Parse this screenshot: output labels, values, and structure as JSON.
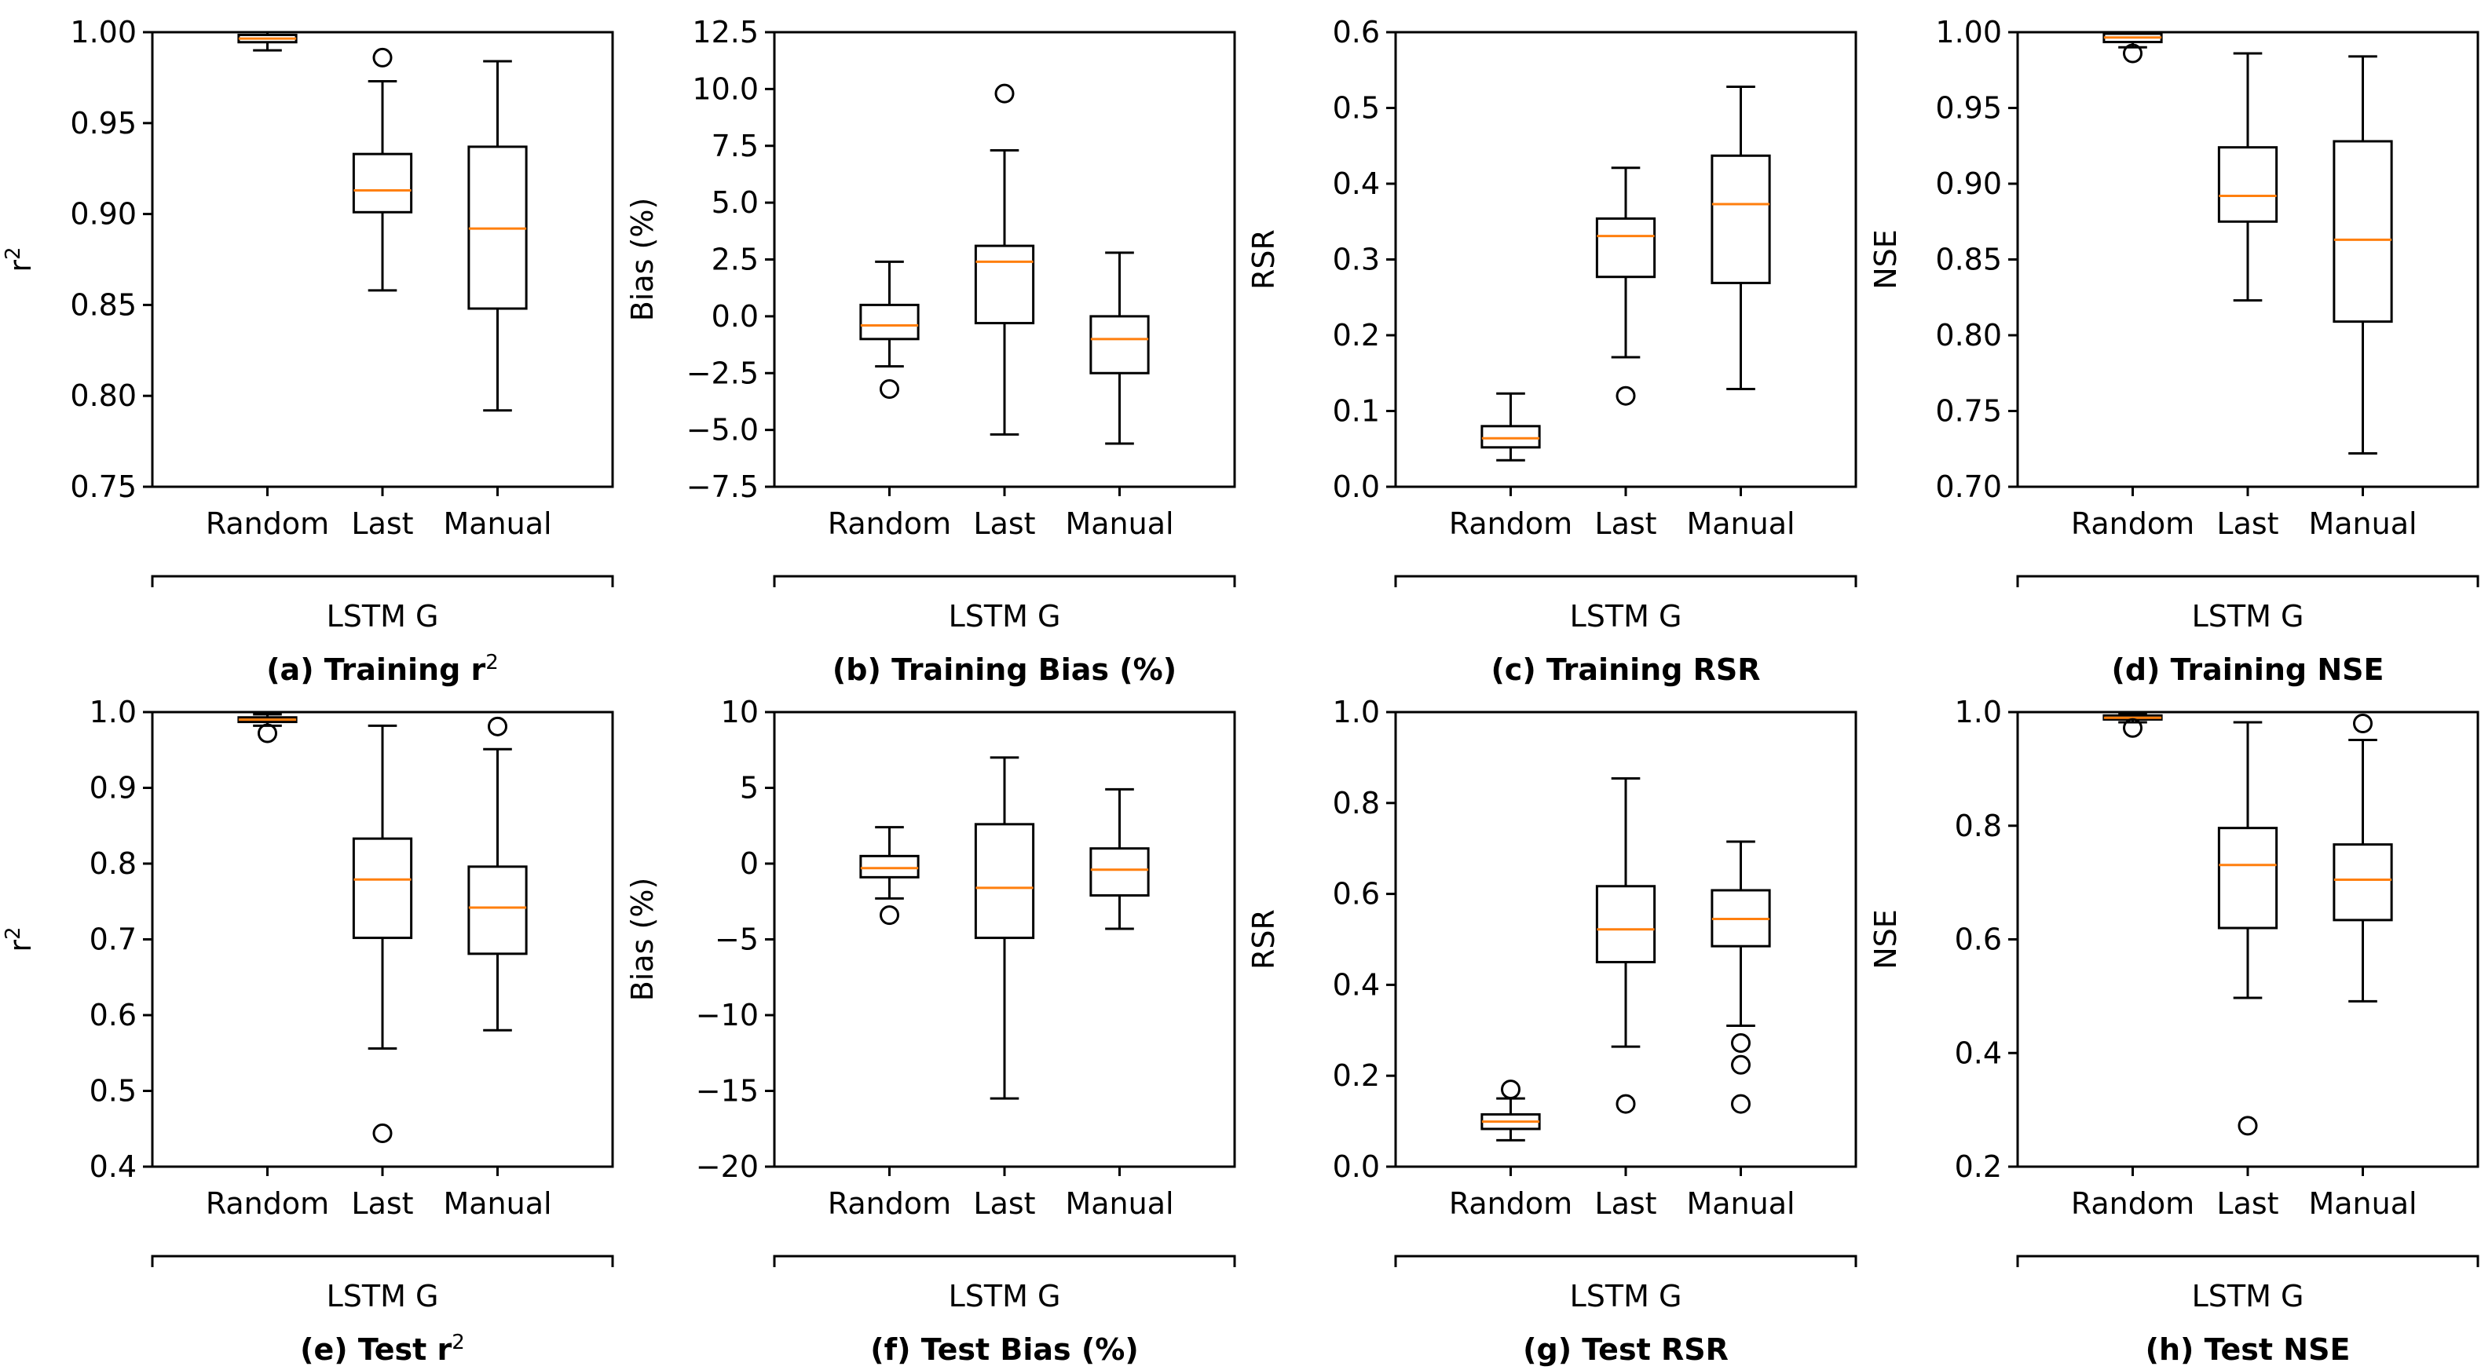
{
  "figure": {
    "group_label": "LSTM G",
    "categories": [
      "Random",
      "Last",
      "Manual"
    ]
  },
  "colors": {
    "median": "#ff7f0e",
    "box": "#000000",
    "background": "#ffffff"
  },
  "chart_data": [
    {
      "type": "box",
      "id": "a",
      "caption": {
        "text": "(a) Training r",
        "sup": "2"
      },
      "ylabel": {
        "text": "r",
        "sup": "2"
      },
      "ylim": [
        0.75,
        1.0
      ],
      "yticks": [
        0.75,
        0.8,
        0.85,
        0.9,
        0.95,
        1.0
      ],
      "tick_labels": [
        "0.75",
        "0.80",
        "0.85",
        "0.90",
        "0.95",
        "1.00"
      ],
      "boxes": [
        {
          "category": "Random",
          "whislo": 0.99,
          "q1": 0.9945,
          "med": 0.9965,
          "q3": 0.9985,
          "whishi": 1.0,
          "fliers": []
        },
        {
          "category": "Last",
          "whislo": 0.858,
          "q1": 0.901,
          "med": 0.913,
          "q3": 0.933,
          "whishi": 0.973,
          "fliers": [
            0.986
          ]
        },
        {
          "category": "Manual",
          "whislo": 0.792,
          "q1": 0.848,
          "med": 0.892,
          "q3": 0.937,
          "whishi": 0.984,
          "fliers": []
        }
      ]
    },
    {
      "type": "box",
      "id": "b",
      "caption": {
        "text": "(b) Training Bias (%)"
      },
      "ylabel": {
        "text": "Bias (%)"
      },
      "ylim": [
        -7.5,
        12.5
      ],
      "yticks": [
        -7.5,
        -5.0,
        -2.5,
        0.0,
        2.5,
        5.0,
        7.5,
        10.0,
        12.5
      ],
      "tick_labels": [
        "−7.5",
        "−5.0",
        "−2.5",
        "0.0",
        "2.5",
        "5.0",
        "7.5",
        "10.0",
        "12.5"
      ],
      "boxes": [
        {
          "category": "Random",
          "whislo": -2.2,
          "q1": -1.0,
          "med": -0.4,
          "q3": 0.5,
          "whishi": 2.4,
          "fliers": [
            -3.2
          ]
        },
        {
          "category": "Last",
          "whislo": -5.2,
          "q1": -0.3,
          "med": 2.4,
          "q3": 3.1,
          "whishi": 7.3,
          "fliers": [
            9.8
          ]
        },
        {
          "category": "Manual",
          "whislo": -5.6,
          "q1": -2.5,
          "med": -1.0,
          "q3": 0.0,
          "whishi": 2.8,
          "fliers": []
        }
      ]
    },
    {
      "type": "box",
      "id": "c",
      "caption": {
        "text": "(c) Training RSR"
      },
      "ylabel": {
        "text": "RSR"
      },
      "ylim": [
        0.0,
        0.6
      ],
      "yticks": [
        0.0,
        0.1,
        0.2,
        0.3,
        0.4,
        0.5,
        0.6
      ],
      "tick_labels": [
        "0.0",
        "0.1",
        "0.2",
        "0.3",
        "0.4",
        "0.5",
        "0.6"
      ],
      "boxes": [
        {
          "category": "Random",
          "whislo": 0.035,
          "q1": 0.052,
          "med": 0.064,
          "q3": 0.08,
          "whishi": 0.123,
          "fliers": []
        },
        {
          "category": "Last",
          "whislo": 0.171,
          "q1": 0.277,
          "med": 0.331,
          "q3": 0.354,
          "whishi": 0.421,
          "fliers": [
            0.12
          ]
        },
        {
          "category": "Manual",
          "whislo": 0.129,
          "q1": 0.269,
          "med": 0.373,
          "q3": 0.437,
          "whishi": 0.528,
          "fliers": []
        }
      ]
    },
    {
      "type": "box",
      "id": "d",
      "caption": {
        "text": "(d) Training NSE"
      },
      "ylabel": {
        "text": "NSE"
      },
      "ylim": [
        0.7,
        1.0
      ],
      "yticks": [
        0.7,
        0.75,
        0.8,
        0.85,
        0.9,
        0.95,
        1.0
      ],
      "tick_labels": [
        "0.70",
        "0.75",
        "0.80",
        "0.85",
        "0.90",
        "0.95",
        "1.00"
      ],
      "boxes": [
        {
          "category": "Random",
          "whislo": 0.99,
          "q1": 0.9935,
          "med": 0.9965,
          "q3": 0.999,
          "whishi": 1.0,
          "fliers": [
            0.986
          ]
        },
        {
          "category": "Last",
          "whislo": 0.823,
          "q1": 0.875,
          "med": 0.892,
          "q3": 0.924,
          "whishi": 0.986,
          "fliers": []
        },
        {
          "category": "Manual",
          "whislo": 0.722,
          "q1": 0.809,
          "med": 0.863,
          "q3": 0.928,
          "whishi": 0.984,
          "fliers": []
        }
      ]
    },
    {
      "type": "box",
      "id": "e",
      "caption": {
        "text": "(e) Test r",
        "sup": "2"
      },
      "ylabel": {
        "text": "r",
        "sup": "2"
      },
      "ylim": [
        0.4,
        1.0
      ],
      "yticks": [
        0.4,
        0.5,
        0.6,
        0.7,
        0.8,
        0.9,
        1.0
      ],
      "tick_labels": [
        "0.4",
        "0.5",
        "0.6",
        "0.7",
        "0.8",
        "0.9",
        "1.0"
      ],
      "boxes": [
        {
          "category": "Random",
          "whislo": 0.982,
          "q1": 0.987,
          "med": 0.99,
          "q3": 0.993,
          "whishi": 0.997,
          "fliers": [
            0.972
          ]
        },
        {
          "category": "Last",
          "whislo": 0.556,
          "q1": 0.702,
          "med": 0.779,
          "q3": 0.833,
          "whishi": 0.982,
          "fliers": [
            0.444
          ]
        },
        {
          "category": "Manual",
          "whislo": 0.58,
          "q1": 0.681,
          "med": 0.742,
          "q3": 0.796,
          "whishi": 0.951,
          "fliers": [
            0.981
          ]
        }
      ]
    },
    {
      "type": "box",
      "id": "f",
      "caption": {
        "text": "(f) Test Bias (%)"
      },
      "ylabel": {
        "text": "Bias (%)"
      },
      "ylim": [
        -20,
        10
      ],
      "yticks": [
        -20,
        -15,
        -10,
        -5,
        0,
        5,
        10
      ],
      "tick_labels": [
        "−20",
        "−15",
        "−10",
        "−5",
        "0",
        "5",
        "10"
      ],
      "boxes": [
        {
          "category": "Random",
          "whislo": -2.3,
          "q1": -0.9,
          "med": -0.3,
          "q3": 0.5,
          "whishi": 2.4,
          "fliers": [
            -3.4
          ]
        },
        {
          "category": "Last",
          "whislo": -15.5,
          "q1": -4.9,
          "med": -1.6,
          "q3": 2.6,
          "whishi": 7.0,
          "fliers": []
        },
        {
          "category": "Manual",
          "whislo": -4.3,
          "q1": -2.1,
          "med": -0.4,
          "q3": 1.0,
          "whishi": 4.9,
          "fliers": []
        }
      ]
    },
    {
      "type": "box",
      "id": "g",
      "caption": {
        "text": "(g) Test RSR"
      },
      "ylabel": {
        "text": "RSR"
      },
      "ylim": [
        0.0,
        1.0
      ],
      "yticks": [
        0.0,
        0.2,
        0.4,
        0.6,
        0.8,
        1.0
      ],
      "tick_labels": [
        "0.0",
        "0.2",
        "0.4",
        "0.6",
        "0.8",
        "1.0"
      ],
      "boxes": [
        {
          "category": "Random",
          "whislo": 0.058,
          "q1": 0.083,
          "med": 0.099,
          "q3": 0.115,
          "whishi": 0.15,
          "fliers": [
            0.17
          ]
        },
        {
          "category": "Last",
          "whislo": 0.264,
          "q1": 0.45,
          "med": 0.522,
          "q3": 0.617,
          "whishi": 0.854,
          "fliers": [
            0.138
          ]
        },
        {
          "category": "Manual",
          "whislo": 0.31,
          "q1": 0.485,
          "med": 0.545,
          "q3": 0.608,
          "whishi": 0.715,
          "fliers": [
            0.272,
            0.224,
            0.138
          ]
        }
      ]
    },
    {
      "type": "box",
      "id": "h",
      "caption": {
        "text": "(h) Test NSE"
      },
      "ylabel": {
        "text": "NSE"
      },
      "ylim": [
        0.2,
        1.0
      ],
      "yticks": [
        0.2,
        0.4,
        0.6,
        0.8,
        1.0
      ],
      "tick_labels": [
        "0.2",
        "0.4",
        "0.6",
        "0.8",
        "1.0"
      ],
      "boxes": [
        {
          "category": "Random",
          "whislo": 0.982,
          "q1": 0.987,
          "med": 0.99,
          "q3": 0.994,
          "whishi": 0.997,
          "fliers": [
            0.972
          ]
        },
        {
          "category": "Last",
          "whislo": 0.497,
          "q1": 0.62,
          "med": 0.731,
          "q3": 0.796,
          "whishi": 0.982,
          "fliers": [
            0.272
          ]
        },
        {
          "category": "Manual",
          "whislo": 0.491,
          "q1": 0.634,
          "med": 0.705,
          "q3": 0.767,
          "whishi": 0.951,
          "fliers": [
            0.98
          ]
        }
      ]
    }
  ]
}
